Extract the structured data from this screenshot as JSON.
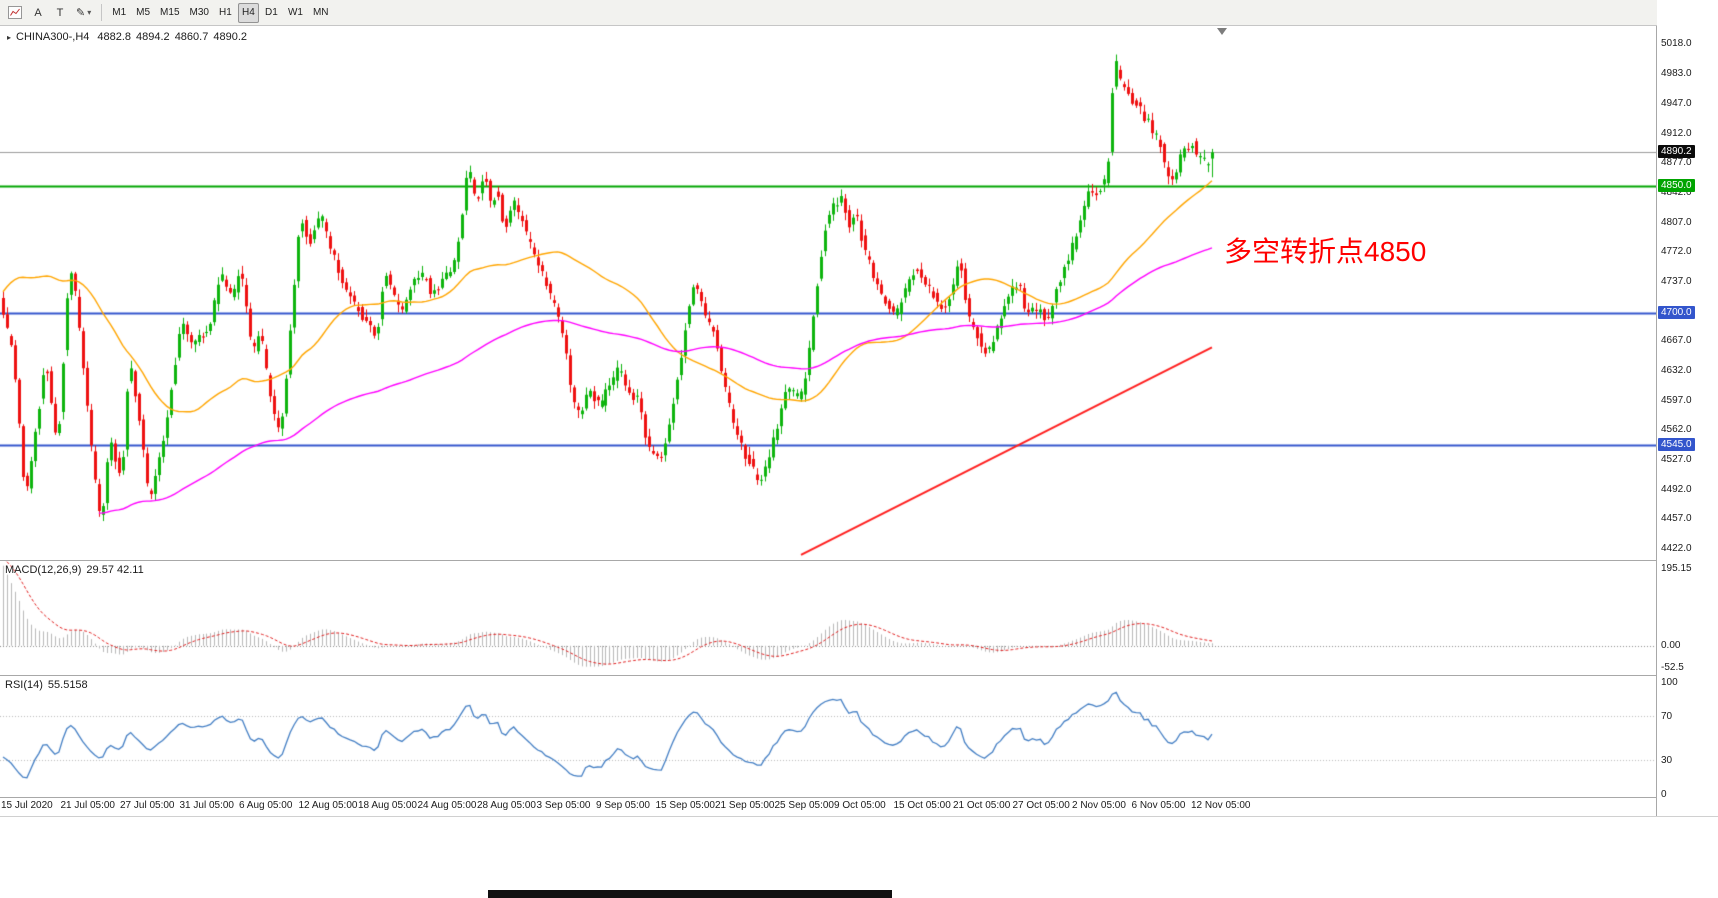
{
  "toolbar": {
    "buttons": [
      {
        "label": "A"
      },
      {
        "label": "T"
      }
    ],
    "draw_dropdown_label": "✎",
    "timeframes": [
      "M1",
      "M5",
      "M15",
      "M30",
      "H1",
      "H4",
      "D1",
      "W1",
      "MN"
    ],
    "active_timeframe": "H4"
  },
  "ui_glyphs": {
    "collapse": "▸",
    "caret": "▾"
  },
  "main_chart": {
    "symbol": "CHINA300-,H4",
    "open": "4882.8",
    "high": "4894.2",
    "low": "4860.7",
    "close": "4890.2",
    "annotation": {
      "text": "多空转折点4850",
      "color": "#ff0000"
    }
  },
  "price_axis": {
    "tick_labels": [
      "5018.0",
      "4983.0",
      "4947.0",
      "4912.0",
      "4877.0",
      "4842.0",
      "4807.0",
      "4772.0",
      "4737.0",
      "4702.0",
      "4667.0",
      "4632.0",
      "4597.0",
      "4562.0",
      "4527.0",
      "4492.0",
      "4457.0",
      "4422.0"
    ],
    "badges": [
      {
        "text": "4890.2",
        "bg": "#0a0a0a"
      },
      {
        "text": "4850.0",
        "bg": "#00a400"
      },
      {
        "text": "4700.0",
        "bg": "#3355cc"
      },
      {
        "text": "4545.0",
        "bg": "#3355cc"
      }
    ]
  },
  "macd_panel": {
    "title": "MACD(12,26,9)",
    "values": "29.57 42.11",
    "tick_labels": [
      "195.15",
      "0.00",
      "-52.5"
    ]
  },
  "rsi_panel": {
    "title": "RSI(14)",
    "value": "55.5158",
    "tick_labels": [
      "100",
      "70",
      "30",
      "0"
    ]
  },
  "time_axis": {
    "labels": [
      "15 Jul 2020",
      "21 Jul 05:00",
      "27 Jul 05:00",
      "31 Jul 05:00",
      "6 Aug 05:00",
      "12 Aug 05:00",
      "18 Aug 05:00",
      "24 Aug 05:00",
      "28 Aug 05:00",
      "3 Sep 05:00",
      "9 Sep 05:00",
      "15 Sep 05:00",
      "21 Sep 05:00",
      "25 Sep 05:00",
      "9 Oct 05:00",
      "15 Oct 05:00",
      "21 Oct 05:00",
      "27 Oct 05:00",
      "2 Nov 05:00",
      "6 Nov 05:00",
      "12 Nov 05:00"
    ]
  },
  "chart_data": {
    "type": "candlestick",
    "symbol": "CHINA300-",
    "timeframe": "H4",
    "title": "CHINA300-,H4 4882.8 4894.2 4860.7 4890.2",
    "current_ohlc": {
      "open": 4882.8,
      "high": 4894.2,
      "low": 4860.7,
      "close": 4890.2
    },
    "price_axis_range": {
      "top": 5018.0,
      "bottom": 4422.0
    },
    "horizontal_levels": [
      {
        "name": "gray-line",
        "price": 4890.2,
        "color": "#9b9b9b",
        "width": 1
      },
      {
        "name": "green-support-4850",
        "price": 4850,
        "color": "#00a400",
        "width": 2
      },
      {
        "name": "blue-level-4700",
        "price": 4700,
        "color": "#3355cc",
        "width": 2
      },
      {
        "name": "blue-level-4545",
        "price": 4545,
        "color": "#3355cc",
        "width": 2
      }
    ],
    "trendline": {
      "from_index": 200,
      "from_price": 4415,
      "to_index": 303,
      "to_price": 4660,
      "color": "#ff1f1f",
      "width": 2
    },
    "moving_averages": [
      {
        "label": "fast-ma",
        "type": "sma",
        "period": 45,
        "color": "#ffa500",
        "start_index": 0
      },
      {
        "label": "slow-ma",
        "type": "ema",
        "period": 130,
        "seed": 4000,
        "color": "#ff00ff",
        "start_index": 24
      }
    ],
    "candle_colors": {
      "up": "#0eb40e",
      "down": "#ee1111"
    },
    "visible_candles": 304,
    "history_candles": 60,
    "price_keypoints": [
      [
        -60,
        4150
      ],
      [
        -48,
        4330
      ],
      [
        -36,
        4560
      ],
      [
        -24,
        4790
      ],
      [
        -14,
        4900
      ],
      [
        -8,
        4855
      ],
      [
        -3,
        4765
      ],
      [
        0,
        4705
      ],
      [
        3,
        4650
      ],
      [
        6,
        4480
      ],
      [
        9,
        4575
      ],
      [
        11,
        4650
      ],
      [
        14,
        4540
      ],
      [
        17,
        4758
      ],
      [
        19,
        4710
      ],
      [
        22,
        4560
      ],
      [
        25,
        4446
      ],
      [
        27,
        4555
      ],
      [
        30,
        4502
      ],
      [
        32,
        4648
      ],
      [
        35,
        4560
      ],
      [
        37,
        4476
      ],
      [
        41,
        4560
      ],
      [
        45,
        4694
      ],
      [
        48,
        4664
      ],
      [
        52,
        4680
      ],
      [
        55,
        4748
      ],
      [
        58,
        4720
      ],
      [
        60,
        4754
      ],
      [
        63,
        4652
      ],
      [
        65,
        4680
      ],
      [
        68,
        4586
      ],
      [
        70,
        4552
      ],
      [
        72,
        4650
      ],
      [
        75,
        4818
      ],
      [
        77,
        4780
      ],
      [
        80,
        4818
      ],
      [
        84,
        4756
      ],
      [
        87,
        4724
      ],
      [
        90,
        4700
      ],
      [
        94,
        4670
      ],
      [
        96,
        4748
      ],
      [
        100,
        4700
      ],
      [
        103,
        4734
      ],
      [
        106,
        4746
      ],
      [
        108,
        4720
      ],
      [
        111,
        4740
      ],
      [
        114,
        4764
      ],
      [
        117,
        4876
      ],
      [
        119,
        4826
      ],
      [
        121,
        4866
      ],
      [
        123,
        4822
      ],
      [
        124,
        4856
      ],
      [
        126,
        4796
      ],
      [
        128,
        4834
      ],
      [
        130,
        4812
      ],
      [
        134,
        4762
      ],
      [
        136,
        4742
      ],
      [
        139,
        4700
      ],
      [
        141,
        4672
      ],
      [
        143,
        4600
      ],
      [
        145,
        4576
      ],
      [
        147,
        4614
      ],
      [
        150,
        4588
      ],
      [
        152,
        4612
      ],
      [
        155,
        4636
      ],
      [
        157,
        4608
      ],
      [
        160,
        4596
      ],
      [
        162,
        4542
      ],
      [
        165,
        4528
      ],
      [
        167,
        4558
      ],
      [
        170,
        4636
      ],
      [
        172,
        4696
      ],
      [
        174,
        4740
      ],
      [
        176,
        4700
      ],
      [
        179,
        4672
      ],
      [
        181,
        4620
      ],
      [
        184,
        4562
      ],
      [
        186,
        4536
      ],
      [
        188,
        4520
      ],
      [
        190,
        4498
      ],
      [
        192,
        4524
      ],
      [
        195,
        4578
      ],
      [
        197,
        4616
      ],
      [
        200,
        4598
      ],
      [
        202,
        4638
      ],
      [
        205,
        4756
      ],
      [
        207,
        4816
      ],
      [
        209,
        4830
      ],
      [
        211,
        4840
      ],
      [
        212,
        4800
      ],
      [
        214,
        4820
      ],
      [
        216,
        4778
      ],
      [
        219,
        4738
      ],
      [
        221,
        4718
      ],
      [
        224,
        4698
      ],
      [
        226,
        4720
      ],
      [
        229,
        4756
      ],
      [
        231,
        4742
      ],
      [
        234,
        4718
      ],
      [
        236,
        4702
      ],
      [
        239,
        4742
      ],
      [
        240,
        4770
      ],
      [
        242,
        4700
      ],
      [
        245,
        4668
      ],
      [
        247,
        4650
      ],
      [
        250,
        4688
      ],
      [
        252,
        4720
      ],
      [
        255,
        4736
      ],
      [
        257,
        4700
      ],
      [
        260,
        4704
      ],
      [
        262,
        4690
      ],
      [
        264,
        4722
      ],
      [
        266,
        4748
      ],
      [
        269,
        4786
      ],
      [
        271,
        4820
      ],
      [
        273,
        4850
      ],
      [
        275,
        4838
      ],
      [
        276,
        4860
      ],
      [
        277,
        4848
      ],
      [
        279,
        5002
      ],
      [
        280,
        4984
      ],
      [
        281,
        4958
      ],
      [
        282,
        4970
      ],
      [
        284,
        4944
      ],
      [
        285,
        4956
      ],
      [
        286,
        4928
      ],
      [
        287,
        4936
      ],
      [
        289,
        4904
      ],
      [
        290,
        4912
      ],
      [
        291,
        4888
      ],
      [
        292,
        4868
      ],
      [
        294,
        4854
      ],
      [
        295,
        4878
      ],
      [
        296,
        4898
      ],
      [
        297,
        4890
      ],
      [
        299,
        4902
      ],
      [
        300,
        4878
      ],
      [
        301,
        4892
      ],
      [
        302,
        4866
      ],
      [
        303,
        4886
      ]
    ],
    "macd": {
      "fast": 12,
      "slow": 26,
      "signal": 9,
      "current_main": 29.57,
      "current_signal": 42.11,
      "left_ramp_peak": 192,
      "bar_color": "#b8b8b8",
      "signal_color": "#e02020"
    },
    "rsi": {
      "period": 14,
      "current": 55.5158,
      "levels": [
        70,
        30
      ],
      "line_color": "#447fc4"
    }
  }
}
